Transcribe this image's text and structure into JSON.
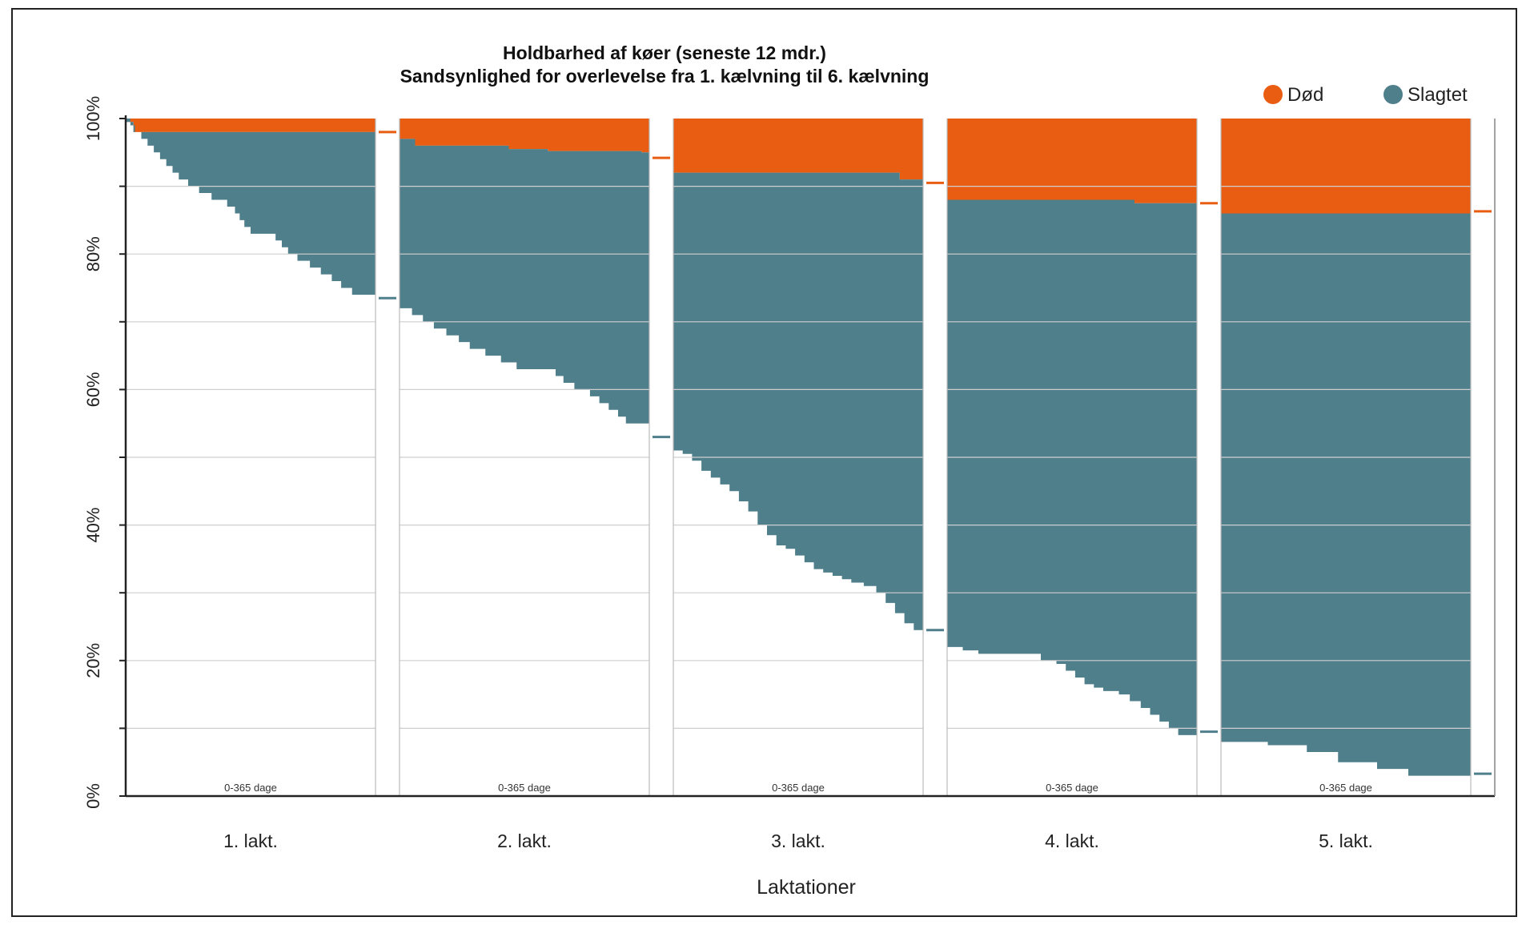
{
  "chart_data": {
    "type": "area",
    "title": "Holdbarhed af køer (seneste 12 mdr.)",
    "subtitle": "Sandsynlighed for overlevelse fra 1. kælvning til 6. kælvning",
    "xlabel": "Laktationer",
    "ylabel": "",
    "ylim": [
      0,
      100
    ],
    "y_ticks": [
      "0%",
      "20%",
      "40%",
      "60%",
      "80%",
      "100%"
    ],
    "grid": true,
    "legend_position": "top-right",
    "colors": {
      "dod": "#e85d12",
      "slagtet": "#4f7f8b"
    },
    "legend": [
      {
        "key": "dod",
        "label": "Død"
      },
      {
        "key": "slagtet",
        "label": "Slagtet"
      }
    ],
    "period_label": "0-365 dage",
    "lactations": [
      {
        "label": "1. lakt.",
        "dod_level_end": 98,
        "alive": [
          [
            0,
            100
          ],
          [
            3,
            99
          ],
          [
            6,
            98
          ],
          [
            10,
            97
          ],
          [
            14,
            96
          ],
          [
            18,
            95
          ],
          [
            22,
            94
          ],
          [
            26,
            93
          ],
          [
            30,
            92
          ],
          [
            34,
            91
          ],
          [
            40,
            90
          ],
          [
            47,
            89
          ],
          [
            55,
            88
          ],
          [
            65,
            87
          ],
          [
            70,
            86
          ],
          [
            73,
            85
          ],
          [
            76,
            84
          ],
          [
            80,
            83
          ],
          [
            88,
            83
          ],
          [
            96,
            82
          ],
          [
            100,
            81
          ],
          [
            104,
            80
          ],
          [
            110,
            79
          ],
          [
            118,
            78
          ],
          [
            125,
            77
          ],
          [
            132,
            76
          ],
          [
            138,
            75
          ],
          [
            145,
            74
          ],
          [
            153,
            74
          ],
          [
            160,
            74
          ]
        ],
        "gap": {
          "dod": 98,
          "alive": 73.5
        }
      },
      {
        "label": "2. lakt.",
        "dod": [
          [
            0,
            97
          ],
          [
            10,
            96
          ],
          [
            50,
            96
          ],
          [
            70,
            95.5
          ],
          [
            95,
            95.2
          ],
          [
            155,
            95
          ],
          [
            160,
            94
          ]
        ],
        "alive": [
          [
            0,
            72
          ],
          [
            8,
            71
          ],
          [
            15,
            70
          ],
          [
            22,
            69
          ],
          [
            30,
            68
          ],
          [
            38,
            67
          ],
          [
            45,
            66
          ],
          [
            55,
            65
          ],
          [
            65,
            64
          ],
          [
            75,
            63
          ],
          [
            90,
            63
          ],
          [
            100,
            62
          ],
          [
            105,
            61
          ],
          [
            112,
            60
          ],
          [
            122,
            59
          ],
          [
            128,
            58
          ],
          [
            134,
            57
          ],
          [
            140,
            56
          ],
          [
            145,
            55
          ],
          [
            155,
            55
          ],
          [
            170,
            55
          ]
        ],
        "gap": {
          "dod": 94.2,
          "alive": 53
        }
      },
      {
        "label": "3. lakt.",
        "dod": [
          [
            0,
            92
          ],
          [
            60,
            92
          ],
          [
            130,
            92
          ],
          [
            145,
            91
          ],
          [
            160,
            90
          ]
        ],
        "alive": [
          [
            0,
            51
          ],
          [
            6,
            50.5
          ],
          [
            12,
            49.5
          ],
          [
            18,
            48
          ],
          [
            24,
            47
          ],
          [
            30,
            46
          ],
          [
            36,
            45
          ],
          [
            42,
            43.5
          ],
          [
            48,
            42
          ],
          [
            54,
            40
          ],
          [
            60,
            38.5
          ],
          [
            66,
            37
          ],
          [
            72,
            36.5
          ],
          [
            78,
            35.5
          ],
          [
            84,
            34.5
          ],
          [
            90,
            33.5
          ],
          [
            96,
            33
          ],
          [
            102,
            32.5
          ],
          [
            108,
            32
          ],
          [
            114,
            31.5
          ],
          [
            122,
            31
          ],
          [
            130,
            30
          ],
          [
            136,
            28.5
          ],
          [
            142,
            27
          ],
          [
            148,
            25.5
          ],
          [
            154,
            24.5
          ],
          [
            160,
            24
          ]
        ],
        "gap": {
          "dod": 90.5,
          "alive": 24.5
        }
      },
      {
        "label": "4. lakt.",
        "dod": [
          [
            0,
            88
          ],
          [
            100,
            88
          ],
          [
            120,
            87.5
          ],
          [
            140,
            87.5
          ],
          [
            160,
            87.5
          ]
        ],
        "alive": [
          [
            0,
            22
          ],
          [
            10,
            21.5
          ],
          [
            20,
            21
          ],
          [
            30,
            21
          ],
          [
            55,
            21
          ],
          [
            60,
            20
          ],
          [
            70,
            19.5
          ],
          [
            76,
            18.5
          ],
          [
            82,
            17.5
          ],
          [
            88,
            16.5
          ],
          [
            94,
            16
          ],
          [
            100,
            15.5
          ],
          [
            110,
            15
          ],
          [
            117,
            14
          ],
          [
            124,
            13
          ],
          [
            130,
            12
          ],
          [
            136,
            11
          ],
          [
            142,
            10
          ],
          [
            148,
            9
          ],
          [
            155,
            9
          ],
          [
            160,
            9
          ]
        ],
        "gap": {
          "dod": 87.5,
          "alive": 9.5
        }
      },
      {
        "label": "5. lakt.",
        "dod": [
          [
            0,
            86
          ],
          [
            100,
            86
          ],
          [
            160,
            86
          ]
        ],
        "alive": [
          [
            0,
            8
          ],
          [
            15,
            8
          ],
          [
            30,
            7.5
          ],
          [
            55,
            6.5
          ],
          [
            75,
            5
          ],
          [
            100,
            4
          ],
          [
            120,
            3
          ],
          [
            140,
            3
          ],
          [
            160,
            3
          ]
        ],
        "gap": {
          "dod": 86.3,
          "alive": 3.3
        }
      }
    ]
  }
}
